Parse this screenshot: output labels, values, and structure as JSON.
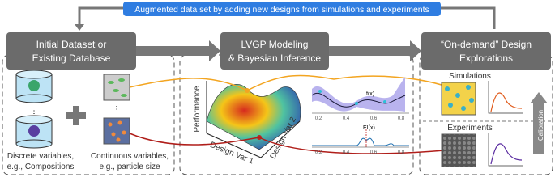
{
  "banner": "Augmented data set by adding new designs from simulations and experiments",
  "stages": [
    {
      "title_lines": [
        "Initial Dataset or",
        "Existing Database"
      ]
    },
    {
      "title_lines": [
        "LVGP Modeling",
        "& Bayesian Inference"
      ]
    },
    {
      "title_lines": [
        "“On-demand” Design",
        "Explorations"
      ]
    }
  ],
  "inputs": {
    "discrete": [
      "Discrete variables,",
      "e.g., Compositions"
    ],
    "continuous": [
      "Continuous variables,",
      "e.g., particle size"
    ]
  },
  "surface": {
    "z_label": "Performance",
    "x_label": "Design Var 1",
    "y_label": "Design Var 2"
  },
  "gp_plot": {
    "title": "f(x)",
    "ticks": [
      "0.2",
      "0.4",
      "0.6",
      "0.8"
    ]
  },
  "ei_plot": {
    "title": "EI(x)",
    "ticks": [
      "0.2",
      "0.4",
      "0.6",
      "0.8"
    ]
  },
  "outputs": {
    "simulations": "Simulations",
    "experiments": "Experiments",
    "calibration": "Calibration"
  }
}
